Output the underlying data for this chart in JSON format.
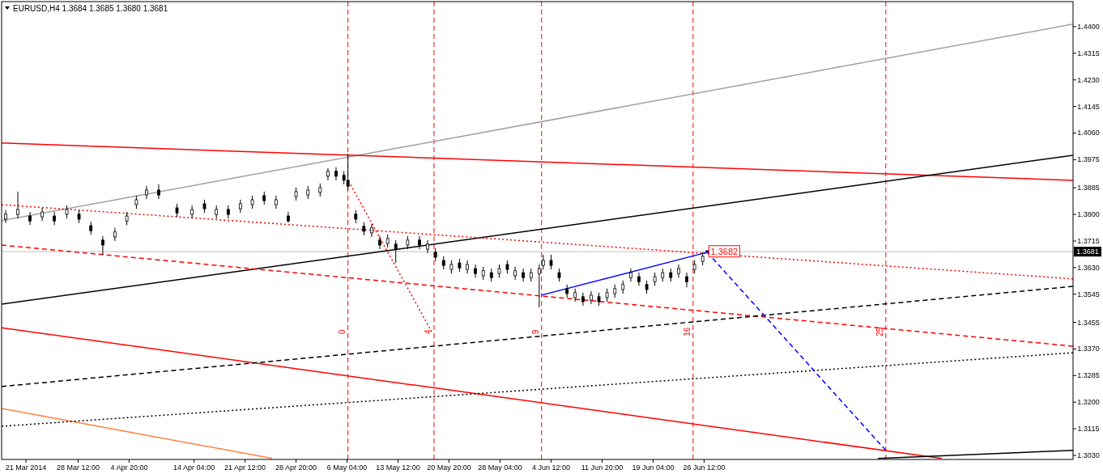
{
  "chart_data": {
    "type": "candlestick",
    "title": "EURUSD,H4  1.3684 1.3685 1.3680 1.3681",
    "x": [
      "2014-03-18T02:00",
      "2014-03-19T20:00",
      "2014-03-21T14:00",
      "2014-03-23T08:00",
      "2014-03-25T02:00",
      "2014-03-26T21:00",
      "2014-03-28T15:00",
      "2014-03-30T08:00",
      "2014-04-01T01:00",
      "2014-04-02T19:00",
      "2014-04-04T12:00",
      "2014-04-05T21:00",
      "2014-04-07T08:00",
      "2014-04-09T02:00",
      "2014-04-11T17:00",
      "2014-04-13T21:00",
      "2014-04-15T16:00",
      "2014-04-17T09:00",
      "2014-04-19T02:00",
      "2014-04-20T20:00",
      "2014-04-22T13:00",
      "2014-04-24T06:00",
      "2014-04-25T23:00",
      "2014-04-27T17:00",
      "2014-04-28T20:00",
      "2014-04-30T13:00",
      "2014-05-02T07:00",
      "2014-05-03T10:00",
      "2014-05-04T14:00",
      "2014-05-05T17:00",
      "2014-05-06T07:00",
      "2014-05-07T10:00",
      "2014-05-08T14:00",
      "2014-05-09T17:00",
      "2014-05-10T21:00",
      "2014-05-12T00:00",
      "2014-05-13T04:00",
      "2014-05-14T21:00",
      "2014-05-16T14:00",
      "2014-05-17T18:00",
      "2014-05-18T21:00",
      "2014-05-20T01:00",
      "2014-05-21T04:00",
      "2014-05-22T08:00",
      "2014-05-23T11:00",
      "2014-05-24T15:00",
      "2014-05-25T18:00",
      "2014-05-26T22:00",
      "2014-05-28T01:00",
      "2014-05-29T05:00",
      "2014-05-30T08:00",
      "2014-05-31T12:00",
      "2014-06-01T15:00",
      "2014-06-02T19:00",
      "2014-06-03T09:00",
      "2014-06-04T12:00",
      "2014-06-05T16:00",
      "2014-06-06T19:00",
      "2014-06-07T23:00",
      "2014-06-09T02:00",
      "2014-06-10T06:00",
      "2014-06-11T09:00",
      "2014-06-12T13:00",
      "2014-06-13T16:00",
      "2014-06-14T20:00",
      "2014-06-15T23:00",
      "2014-06-17T03:00",
      "2014-06-18T06:00",
      "2014-06-19T10:00",
      "2014-06-20T13:00",
      "2014-06-21T17:00",
      "2014-06-22T20:00",
      "2014-06-24T00:00",
      "2014-06-25T03:00",
      "2014-06-26T07:00",
      "2014-06-26T23:00"
    ],
    "ohlc": [
      [
        1.3785,
        1.3814,
        1.3772,
        1.3801
      ],
      [
        1.38,
        1.3873,
        1.3787,
        1.3816
      ],
      [
        1.3795,
        1.3808,
        1.3766,
        1.3779
      ],
      [
        1.3792,
        1.3821,
        1.3779,
        1.3808
      ],
      [
        1.3795,
        1.3808,
        1.3766,
        1.3779
      ],
      [
        1.38,
        1.3829,
        1.3787,
        1.3816
      ],
      [
        1.3801,
        1.3814,
        1.3772,
        1.3785
      ],
      [
        1.3764,
        1.3777,
        1.3735,
        1.3748
      ],
      [
        1.3718,
        1.3731,
        1.3671,
        1.3702
      ],
      [
        1.3728,
        1.3757,
        1.3715,
        1.3744
      ],
      [
        1.3779,
        1.3808,
        1.3766,
        1.3795
      ],
      [
        1.3831,
        1.386,
        1.3818,
        1.3847
      ],
      [
        1.3862,
        1.3891,
        1.3849,
        1.3878
      ],
      [
        1.3878,
        1.3896,
        1.3849,
        1.3862
      ],
      [
        1.3821,
        1.3834,
        1.3792,
        1.3805
      ],
      [
        1.38,
        1.3829,
        1.3787,
        1.3816
      ],
      [
        1.3834,
        1.3847,
        1.3805,
        1.3818
      ],
      [
        1.38,
        1.3829,
        1.3787,
        1.3816
      ],
      [
        1.3816,
        1.3829,
        1.3787,
        1.38
      ],
      [
        1.3818,
        1.3847,
        1.3805,
        1.3834
      ],
      [
        1.3831,
        1.386,
        1.3818,
        1.3847
      ],
      [
        1.386,
        1.3873,
        1.3831,
        1.3844
      ],
      [
        1.3831,
        1.386,
        1.3818,
        1.3847
      ],
      [
        1.3795,
        1.3808,
        1.3774,
        1.3779
      ],
      [
        1.3857,
        1.3886,
        1.3844,
        1.3873
      ],
      [
        1.3862,
        1.3891,
        1.3849,
        1.3878
      ],
      [
        1.387,
        1.3899,
        1.3857,
        1.3886
      ],
      [
        1.3922,
        1.3948,
        1.3909,
        1.3938
      ],
      [
        1.3938,
        1.3951,
        1.3909,
        1.3922
      ],
      [
        1.3925,
        1.3938,
        1.3896,
        1.3909
      ],
      [
        1.3909,
        1.3994,
        1.3878,
        1.389
      ],
      [
        1.3801,
        1.3814,
        1.3772,
        1.3785
      ],
      [
        1.3762,
        1.3775,
        1.3733,
        1.3746
      ],
      [
        1.3741,
        1.377,
        1.3728,
        1.3757
      ],
      [
        1.3718,
        1.3731,
        1.3689,
        1.3702
      ],
      [
        1.3707,
        1.3736,
        1.3694,
        1.3723
      ],
      [
        1.3705,
        1.3718,
        1.3645,
        1.3689
      ],
      [
        1.3702,
        1.3731,
        1.3689,
        1.3718
      ],
      [
        1.3718,
        1.3731,
        1.3689,
        1.3702
      ],
      [
        1.3689,
        1.3718,
        1.3676,
        1.3705
      ],
      [
        1.3679,
        1.3692,
        1.365,
        1.3663
      ],
      [
        1.3653,
        1.3666,
        1.3624,
        1.3637
      ],
      [
        1.3624,
        1.3653,
        1.3611,
        1.364
      ],
      [
        1.3645,
        1.3658,
        1.3616,
        1.3629
      ],
      [
        1.3624,
        1.3653,
        1.3611,
        1.364
      ],
      [
        1.3627,
        1.364,
        1.3598,
        1.3611
      ],
      [
        1.3604,
        1.3633,
        1.3591,
        1.362
      ],
      [
        1.3614,
        1.3627,
        1.3585,
        1.3598
      ],
      [
        1.3611,
        1.364,
        1.3598,
        1.3627
      ],
      [
        1.364,
        1.3653,
        1.3611,
        1.3624
      ],
      [
        1.3604,
        1.3633,
        1.3591,
        1.362
      ],
      [
        1.3614,
        1.3627,
        1.3585,
        1.3598
      ],
      [
        1.3598,
        1.3627,
        1.3585,
        1.3614
      ],
      [
        1.3611,
        1.364,
        1.3503,
        1.3627
      ],
      [
        1.3637,
        1.3671,
        1.3624,
        1.3653
      ],
      [
        1.3653,
        1.3671,
        1.3624,
        1.3637
      ],
      [
        1.3614,
        1.3627,
        1.3585,
        1.3598
      ],
      [
        1.3563,
        1.3576,
        1.3534,
        1.3547
      ],
      [
        1.3534,
        1.3563,
        1.3521,
        1.355
      ],
      [
        1.3537,
        1.355,
        1.3508,
        1.3521
      ],
      [
        1.3526,
        1.3555,
        1.3513,
        1.3542
      ],
      [
        1.3537,
        1.355,
        1.3508,
        1.3521
      ],
      [
        1.3534,
        1.3563,
        1.3521,
        1.355
      ],
      [
        1.3547,
        1.3576,
        1.3534,
        1.3563
      ],
      [
        1.356,
        1.3589,
        1.3547,
        1.3576
      ],
      [
        1.3598,
        1.3627,
        1.3585,
        1.3614
      ],
      [
        1.3601,
        1.3614,
        1.3572,
        1.3585
      ],
      [
        1.3576,
        1.3589,
        1.3547,
        1.356
      ],
      [
        1.3585,
        1.3614,
        1.3572,
        1.3601
      ],
      [
        1.3598,
        1.3627,
        1.3585,
        1.3614
      ],
      [
        1.3614,
        1.3627,
        1.3585,
        1.3598
      ],
      [
        1.3611,
        1.364,
        1.3598,
        1.3627
      ],
      [
        1.3601,
        1.3614,
        1.3567,
        1.3585
      ],
      [
        1.3624,
        1.3653,
        1.3611,
        1.364
      ],
      [
        1.365,
        1.3679,
        1.3637,
        1.3666
      ],
      [
        1.3684,
        1.3685,
        1.368,
        1.3681
      ]
    ],
    "series": [
      {
        "type": "line",
        "color": "#a0a0a0",
        "line_style": "solid",
        "x": [
          "2014-03-17T12:00",
          "2014-08-18T13:00"
        ],
        "values": [
          1.378,
          1.4408
        ]
      },
      {
        "type": "line",
        "color": "#ff0000",
        "line_style": "solid",
        "x": [
          "2014-03-17T12:00",
          "2014-08-18T13:00"
        ],
        "values": [
          1.4028,
          1.3909
        ]
      },
      {
        "type": "line",
        "color": "#000000",
        "line_style": "solid",
        "x": [
          "2014-03-17T12:00",
          "2014-08-18T13:00"
        ],
        "values": [
          1.3513,
          1.3989
        ]
      },
      {
        "type": "line",
        "color": "#ff0000",
        "line_style": "solid",
        "x": [
          "2014-03-17T12:00",
          "2014-07-30T16:00"
        ],
        "values": [
          1.3438,
          1.302
        ]
      },
      {
        "type": "line",
        "color": "#ff8040",
        "line_style": "solid",
        "x": [
          "2014-03-17T12:00",
          "2014-04-25T10:00"
        ],
        "values": [
          1.318,
          1.302
        ]
      },
      {
        "type": "line",
        "color": "#ff0000",
        "line_style": "dotted",
        "x": [
          "2014-03-17T12:00",
          "2014-08-18T13:00"
        ],
        "values": [
          1.3831,
          1.3594
        ]
      },
      {
        "type": "line",
        "color": "#ff0000",
        "line_style": "dashed",
        "x": [
          "2014-03-17T12:00",
          "2014-08-18T13:00"
        ],
        "values": [
          1.3702,
          1.3379
        ]
      },
      {
        "type": "line",
        "color": "#000000",
        "line_style": "dashed",
        "x": [
          "2014-03-17T12:00",
          "2014-08-18T13:00"
        ],
        "values": [
          1.325,
          1.357
        ]
      },
      {
        "type": "line",
        "color": "#000000",
        "line_style": "dotted",
        "x": [
          "2014-03-17T12:00",
          "2014-08-18T13:00"
        ],
        "values": [
          1.3123,
          1.3358
        ]
      },
      {
        "type": "line",
        "color": "#000000",
        "line_style": "solid",
        "x": [
          "2014-07-21T12:00",
          "2014-08-18T13:00"
        ],
        "values": [
          1.302,
          1.3046
        ]
      },
      {
        "type": "line",
        "color": "#0000ff",
        "line_style": "solid",
        "x": [
          "2014-06-03T03:00",
          "2014-06-26T23:00"
        ],
        "values": [
          1.3542,
          1.3679
        ]
      },
      {
        "type": "line",
        "color": "#0000ff",
        "line_style": "dashed",
        "x": [
          "2014-06-26T23:00",
          "2014-07-22T15:00"
        ],
        "values": [
          1.3679,
          1.3046
        ]
      },
      {
        "type": "line",
        "color": "#ff0000",
        "line_style": "dotted",
        "x": [
          "2014-05-06T16:00",
          "2014-05-18T08:00"
        ],
        "values": [
          1.3895,
          1.3425
        ]
      }
    ],
    "xlim": [
      "2014-03-17T12:00",
      "2014-08-18T13:00"
    ],
    "xticks": [
      {
        "value": "2014-03-21T00:00",
        "label": "21 Mar 2014"
      },
      {
        "value": "2014-03-28T12:00",
        "label": "28 Mar 12:00"
      },
      {
        "value": "2014-04-04T20:00",
        "label": "4 Apr 20:00"
      },
      {
        "value": "2014-04-14T04:00",
        "label": "14 Apr 04:00"
      },
      {
        "value": "2014-04-21T12:00",
        "label": "21 Apr 12:00"
      },
      {
        "value": "2014-04-28T20:00",
        "label": "28 Apr 20:00"
      },
      {
        "value": "2014-05-06T04:00",
        "label": "6 May 04:00"
      },
      {
        "value": "2014-05-13T12:00",
        "label": "13 May 12:00"
      },
      {
        "value": "2014-05-20T20:00",
        "label": "20 May 20:00"
      },
      {
        "value": "2014-05-28T04:00",
        "label": "28 May 04:00"
      },
      {
        "value": "2014-06-04T12:00",
        "label": "4 Jun 12:00"
      },
      {
        "value": "2014-06-11T20:00",
        "label": "11 Jun 20:00"
      },
      {
        "value": "2014-06-19T04:00",
        "label": "19 Jun 04:00"
      },
      {
        "value": "2014-06-26T12:00",
        "label": "26 Jun 12:00"
      }
    ],
    "ylim": [
      1.3017,
      1.448
    ],
    "yticks": [
      {
        "value": 1.44,
        "label": "1.4400"
      },
      {
        "value": 1.4315,
        "label": "1.4315"
      },
      {
        "value": 1.423,
        "label": "1.4230"
      },
      {
        "value": 1.4145,
        "label": "1.4145"
      },
      {
        "value": 1.406,
        "label": "1.4060"
      },
      {
        "value": 1.3975,
        "label": "1.3975"
      },
      {
        "value": 1.3885,
        "label": "1.3885"
      },
      {
        "value": 1.38,
        "label": "1.3800"
      },
      {
        "value": 1.3715,
        "label": "1.3715"
      },
      {
        "value": 1.363,
        "label": "1.3630"
      },
      {
        "value": 1.3545,
        "label": "1.3545"
      },
      {
        "value": 1.3455,
        "label": "1.3455"
      },
      {
        "value": 1.337,
        "label": "1.3370"
      },
      {
        "value": 1.3285,
        "label": "1.3285"
      },
      {
        "value": 1.32,
        "label": "1.3200"
      },
      {
        "value": 1.3115,
        "label": "1.3115"
      },
      {
        "value": 1.303,
        "label": "1.3030"
      }
    ],
    "ref_lines": [
      {
        "axis": "y",
        "value": 1.3681,
        "label": "1.3681",
        "color": "#c0c0c0",
        "line_style": "solid"
      },
      {
        "axis": "x",
        "value": "2014-05-06T07:00",
        "color": "#ff0000",
        "line_style": "dashed"
      },
      {
        "axis": "x",
        "value": "2014-05-18T16:00",
        "color": "#ff0000",
        "line_style": "dashed"
      },
      {
        "axis": "x",
        "value": "2014-06-03T03:00",
        "color": "#ff0000",
        "line_style": "dashed"
      },
      {
        "axis": "x",
        "value": "2014-06-24T22:00",
        "color": "#ff0000",
        "line_style": "dashed"
      },
      {
        "axis": "x",
        "value": "2014-07-22T15:00",
        "color": "#ff0000",
        "line_style": "dashed"
      }
    ],
    "annotations": [
      {
        "text": "1.3682",
        "x": "2014-06-26T23:00",
        "y": 1.3682
      },
      {
        "text": "0",
        "x": "2014-05-06T07:00",
        "y": 1.3425
      },
      {
        "text": "4",
        "x": "2014-05-18T16:00",
        "y": 1.3425
      },
      {
        "text": "9",
        "x": "2014-06-03T03:00",
        "y": 1.3425
      },
      {
        "text": "16",
        "x": "2014-06-24T22:00",
        "y": 1.3425
      },
      {
        "text": "25",
        "x": "2014-07-22T15:00",
        "y": 1.3425
      }
    ]
  }
}
